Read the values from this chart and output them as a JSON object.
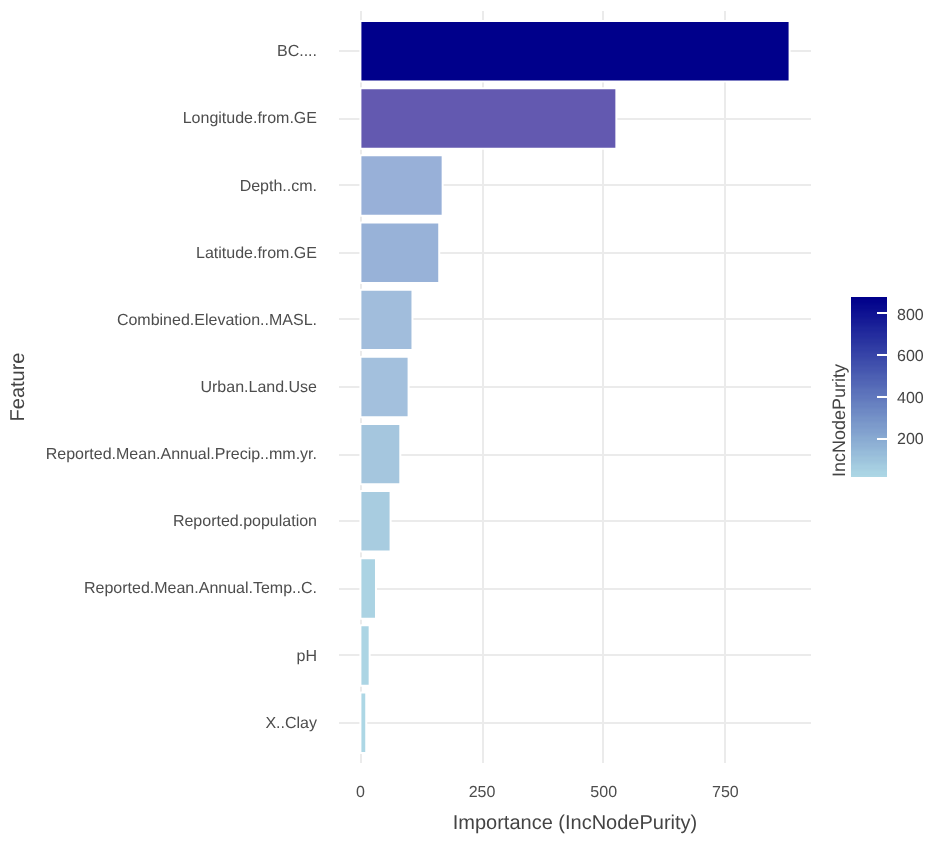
{
  "chart_data": {
    "type": "bar",
    "orientation": "horizontal",
    "xlabel": "Importance (IncNodePurity)",
    "ylabel": "Feature",
    "clabel": "IncNodePurity",
    "categories": [
      "BC....",
      "Longitude.from.GE",
      "Depth..cm.",
      "Latitude.from.GE",
      "Combined.Elevation..MASL.",
      "Urban.Land.Use",
      "Reported.Mean.Annual.Precip..mm.yr.",
      "Reported.population",
      "Reported.Mean.Annual.Temp..C.",
      "pH",
      "X..Clay"
    ],
    "values": [
      882,
      526,
      169,
      162,
      107,
      99,
      82,
      62,
      32,
      19,
      12
    ],
    "colors": [
      "#00008b",
      "#6359b0",
      "#98b0d8",
      "#98b2d8",
      "#a1bddc",
      "#a3c0dd",
      "#a5c6de",
      "#a8cce0",
      "#abd3e3",
      "#acd5e4",
      "#add7e5"
    ],
    "xlim": [
      -44,
      926
    ],
    "xticks": [
      0,
      250,
      500,
      750
    ],
    "clim": [
      12,
      882
    ],
    "cticks": [
      200,
      400,
      600,
      800
    ],
    "grid": true
  }
}
